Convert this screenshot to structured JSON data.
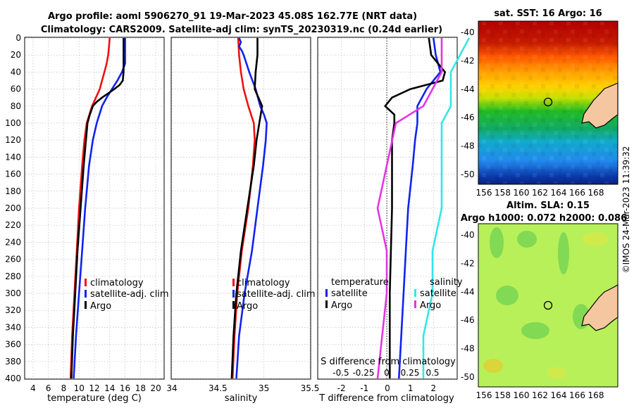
{
  "title_line1": "Argo profile: aoml 5906270_91 19-Mar-2023 45.08S 162.77E (NRT data)",
  "title_line2": "Climatology: CARS2009. Satellite-adj clim: synTS_20230319.nc (0.24d earlier)",
  "stamp": "©IMOS 24-Mar-2023 11:39:32",
  "colors": {
    "climatology": "#ee1111",
    "satellite": "#1122ee",
    "argo": "#000000",
    "sal_satellite": "#33e6e6",
    "sal_argo": "#e633e6"
  },
  "chart_data": [
    {
      "type": "line",
      "id": "temperature",
      "xlabel": "temperature (deg C)",
      "xlim": [
        3,
        21
      ],
      "xticks": [
        4,
        6,
        8,
        10,
        12,
        14,
        16,
        18,
        20
      ],
      "ylim": [
        0,
        400
      ],
      "yticks": [
        0,
        20,
        40,
        60,
        80,
        100,
        120,
        140,
        160,
        180,
        200,
        220,
        240,
        260,
        280,
        300,
        320,
        340,
        360,
        380,
        400
      ],
      "legend": [
        "climatology",
        "satellite-adj. clim",
        "Argo"
      ],
      "series": [
        {
          "name": "climatology",
          "color": "#ee1111",
          "depth": [
            0,
            10,
            20,
            30,
            40,
            50,
            60,
            70,
            80,
            100,
            120,
            150,
            200,
            250,
            300,
            350,
            400
          ],
          "values": [
            14.0,
            13.9,
            13.8,
            13.6,
            13.3,
            13.0,
            12.7,
            12.2,
            11.7,
            11.0,
            10.7,
            10.4,
            10.0,
            9.7,
            9.4,
            9.1,
            8.9
          ]
        },
        {
          "name": "satellite-adj. clim",
          "color": "#1122ee",
          "depth": [
            0,
            20,
            30,
            40,
            50,
            60,
            70,
            80,
            100,
            120,
            150,
            200,
            250,
            300,
            350,
            400
          ],
          "values": [
            16.0,
            16.0,
            16.0,
            15.6,
            15.0,
            14.3,
            13.6,
            13.0,
            12.3,
            11.8,
            11.3,
            10.8,
            10.4,
            10.0,
            9.6,
            9.3
          ]
        },
        {
          "name": "Argo",
          "color": "#000000",
          "depth": [
            0,
            20,
            40,
            50,
            55,
            60,
            65,
            70,
            75,
            80,
            90,
            100,
            120,
            150,
            200,
            250,
            300,
            350,
            400
          ],
          "values": [
            15.8,
            15.8,
            15.8,
            15.7,
            15.3,
            14.6,
            13.8,
            13.0,
            12.3,
            11.8,
            11.4,
            11.1,
            10.9,
            10.6,
            10.2,
            9.8,
            9.5,
            9.2,
            9.0
          ]
        }
      ]
    },
    {
      "type": "line",
      "id": "salinity",
      "xlabel": "salinity",
      "xlim": [
        34,
        35.5
      ],
      "xticks": [
        34,
        34.5,
        35,
        35.5
      ],
      "xticklabels": [
        "34",
        "34.5",
        "35",
        "35.5"
      ],
      "ylim": [
        0,
        400
      ],
      "legend": [
        "climatology",
        "satellite-adj. clim",
        "Argo"
      ],
      "series": [
        {
          "name": "climatology",
          "color": "#ee1111",
          "depth": [
            0,
            20,
            40,
            60,
            80,
            100,
            120,
            150,
            200,
            250,
            300,
            350,
            400
          ],
          "values": [
            34.72,
            34.73,
            34.75,
            34.78,
            34.83,
            34.89,
            34.9,
            34.88,
            34.83,
            34.76,
            34.71,
            34.68,
            34.66
          ]
        },
        {
          "name": "satellite-adj. clim",
          "color": "#1122ee",
          "depth": [
            0,
            5,
            10,
            15,
            20,
            40,
            60,
            80,
            90,
            100,
            120,
            150,
            200,
            250,
            300,
            350,
            400
          ],
          "values": [
            34.73,
            34.75,
            34.73,
            34.76,
            34.78,
            34.84,
            34.91,
            34.96,
            35.0,
            35.03,
            35.02,
            34.99,
            34.93,
            34.87,
            34.79,
            34.73,
            34.7
          ]
        },
        {
          "name": "Argo",
          "color": "#000000",
          "depth": [
            0,
            20,
            40,
            60,
            80,
            100,
            120,
            150,
            200,
            250,
            300,
            350,
            400
          ],
          "values": [
            34.93,
            34.93,
            34.91,
            34.9,
            34.98,
            34.95,
            34.92,
            34.89,
            34.82,
            34.75,
            34.7,
            34.67,
            34.65
          ]
        }
      ]
    },
    {
      "type": "line",
      "id": "difference",
      "xlabel": "T difference from climatology",
      "xlim": [
        -3,
        3
      ],
      "xticks": [
        -2,
        -1,
        0,
        1,
        2
      ],
      "xticklabels": [
        "-2",
        "-1",
        "0",
        "1",
        "2"
      ],
      "top_axis_label": "S difference from climatology",
      "top_axis_ticks": [
        "-0.5",
        "-0.25",
        "0",
        "0.25",
        "0.5"
      ],
      "ylim": [
        0,
        400
      ],
      "legend_temperature": {
        "header": "temperature",
        "items": [
          "satellite",
          "Argo"
        ]
      },
      "legend_salinity": {
        "header": "salinity",
        "items": [
          "satellite",
          "Argo"
        ]
      },
      "series": [
        {
          "name": "T satellite",
          "color": "#1122ee",
          "depth": [
            0,
            20,
            40,
            60,
            80,
            100,
            120,
            150,
            200,
            250,
            300,
            350,
            400
          ],
          "values": [
            2.0,
            2.1,
            2.3,
            1.7,
            1.3,
            1.3,
            1.2,
            1.1,
            0.9,
            0.8,
            0.7,
            0.6,
            0.5
          ]
        },
        {
          "name": "T Argo",
          "color": "#000000",
          "depth": [
            0,
            20,
            40,
            50,
            60,
            70,
            80,
            90,
            100,
            120,
            150,
            200,
            250,
            300,
            350,
            400
          ],
          "values": [
            1.8,
            1.9,
            2.5,
            2.4,
            1.0,
            0.2,
            -0.1,
            0.3,
            0.3,
            0.2,
            0.2,
            0.2,
            0.15,
            0.1,
            0.1,
            0.1
          ]
        },
        {
          "name": "S satellite",
          "color": "#33e6e6",
          "depth": [
            0,
            20,
            40,
            60,
            80,
            100,
            150,
            200,
            250,
            300,
            350,
            400
          ],
          "values": [
            0.9,
            0.8,
            0.7,
            0.7,
            0.7,
            0.6,
            0.6,
            0.6,
            0.5,
            0.5,
            0.4,
            0.4
          ]
        },
        {
          "name": "S Argo",
          "color": "#e633e6",
          "depth": [
            0,
            20,
            40,
            60,
            80,
            100,
            150,
            200,
            250,
            300,
            350,
            400
          ],
          "values": [
            0.6,
            0.6,
            0.6,
            0.5,
            0.4,
            0.1,
            0.0,
            -0.1,
            0.0,
            0.0,
            -0.05,
            -0.1
          ]
        }
      ]
    },
    {
      "type": "heatmap",
      "id": "sst_map",
      "title": "sat. SST: 16 Argo: 16",
      "xticklabels": [
        "156",
        "158",
        "160",
        "162",
        "164",
        "166",
        "168"
      ],
      "yticklabels": [
        "-40",
        "-42",
        "-44",
        "-46",
        "-48",
        "-50"
      ],
      "marker": {
        "lon": 162.77,
        "lat": -45.08
      }
    },
    {
      "type": "heatmap",
      "id": "sla_map",
      "title_line1": "Altim. SLA: 0.15",
      "title_line2": "Argo h1000: 0.072 h2000: 0.086",
      "xticklabels": [
        "156",
        "158",
        "160",
        "162",
        "164",
        "166",
        "168"
      ],
      "yticklabels": [
        "-40",
        "-42",
        "-44",
        "-46",
        "-48",
        "-50"
      ],
      "marker": {
        "lon": 162.77,
        "lat": -45.08
      }
    }
  ]
}
